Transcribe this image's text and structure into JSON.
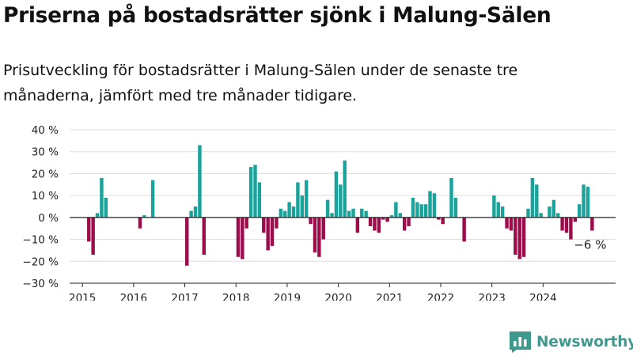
{
  "title": "Priserna på bostadsrätter sjönk i Malung-Sälen",
  "subtitle": "Prisutveckling för bostadsrätter i Malung-Sälen under de senaste tre månaderna, jämfört med tre månader tidigare.",
  "brand": "Newsworthy",
  "colors": {
    "positive": "#1aa39b",
    "negative": "#9b0d4b",
    "grid": "#dddddd",
    "baseline": "#222222",
    "brand": "#3f9a8d"
  },
  "chart_data": {
    "type": "bar",
    "y_unit": "%",
    "ylim": [
      -30,
      40
    ],
    "yticks": [
      {
        "value": -30,
        "label": "−30 %"
      },
      {
        "value": -20,
        "label": "−20 %"
      },
      {
        "value": -10,
        "label": "−10 %"
      },
      {
        "value": 0,
        "label": "0 %"
      },
      {
        "value": 10,
        "label": "10 %"
      },
      {
        "value": 20,
        "label": "20 %"
      },
      {
        "value": 30,
        "label": "30 %"
      },
      {
        "value": 40,
        "label": "40 %"
      }
    ],
    "xticks": [
      {
        "date": "2015-01",
        "label": "2015"
      },
      {
        "date": "2016-01",
        "label": "2016"
      },
      {
        "date": "2017-01",
        "label": "2017"
      },
      {
        "date": "2018-01",
        "label": "2018"
      },
      {
        "date": "2019-01",
        "label": "2019"
      },
      {
        "date": "2020-01",
        "label": "2020"
      },
      {
        "date": "2021-01",
        "label": "2021"
      },
      {
        "date": "2022-01",
        "label": "2022"
      },
      {
        "date": "2023-01",
        "label": "2023"
      },
      {
        "date": "2024-01",
        "label": "2024"
      }
    ],
    "xlim": [
      "2014-10",
      "2025-06"
    ],
    "grid": true,
    "series": [
      {
        "points": [
          {
            "date": "2015-02",
            "value": -11
          },
          {
            "date": "2015-03",
            "value": -17
          },
          {
            "date": "2015-04",
            "value": 2
          },
          {
            "date": "2015-05",
            "value": 18
          },
          {
            "date": "2015-06",
            "value": 9
          },
          {
            "date": "2016-02",
            "value": -5
          },
          {
            "date": "2016-03",
            "value": 1
          },
          {
            "date": "2016-05",
            "value": 17
          },
          {
            "date": "2017-01",
            "value": -22
          },
          {
            "date": "2017-02",
            "value": 3
          },
          {
            "date": "2017-03",
            "value": 5
          },
          {
            "date": "2017-04",
            "value": 33
          },
          {
            "date": "2017-05",
            "value": -17
          },
          {
            "date": "2018-01",
            "value": -18
          },
          {
            "date": "2018-02",
            "value": -19
          },
          {
            "date": "2018-03",
            "value": -5
          },
          {
            "date": "2018-04",
            "value": 23
          },
          {
            "date": "2018-05",
            "value": 24
          },
          {
            "date": "2018-06",
            "value": 16
          },
          {
            "date": "2018-07",
            "value": -7
          },
          {
            "date": "2018-08",
            "value": -15
          },
          {
            "date": "2018-09",
            "value": -13
          },
          {
            "date": "2018-10",
            "value": -5
          },
          {
            "date": "2018-11",
            "value": 4
          },
          {
            "date": "2018-12",
            "value": 3
          },
          {
            "date": "2019-01",
            "value": 7
          },
          {
            "date": "2019-02",
            "value": 5
          },
          {
            "date": "2019-03",
            "value": 16
          },
          {
            "date": "2019-04",
            "value": 10
          },
          {
            "date": "2019-05",
            "value": 17
          },
          {
            "date": "2019-06",
            "value": -3
          },
          {
            "date": "2019-07",
            "value": -16
          },
          {
            "date": "2019-08",
            "value": -18
          },
          {
            "date": "2019-09",
            "value": -10
          },
          {
            "date": "2019-10",
            "value": 8
          },
          {
            "date": "2019-11",
            "value": 2
          },
          {
            "date": "2019-12",
            "value": 21
          },
          {
            "date": "2020-01",
            "value": 15
          },
          {
            "date": "2020-02",
            "value": 26
          },
          {
            "date": "2020-03",
            "value": 3
          },
          {
            "date": "2020-04",
            "value": 4
          },
          {
            "date": "2020-05",
            "value": -7
          },
          {
            "date": "2020-06",
            "value": 4
          },
          {
            "date": "2020-07",
            "value": 3
          },
          {
            "date": "2020-08",
            "value": -4
          },
          {
            "date": "2020-09",
            "value": -6
          },
          {
            "date": "2020-10",
            "value": -7
          },
          {
            "date": "2020-11",
            "value": -1
          },
          {
            "date": "2020-12",
            "value": -2
          },
          {
            "date": "2021-01",
            "value": 1
          },
          {
            "date": "2021-02",
            "value": 7
          },
          {
            "date": "2021-03",
            "value": 2
          },
          {
            "date": "2021-04",
            "value": -6
          },
          {
            "date": "2021-05",
            "value": -4
          },
          {
            "date": "2021-06",
            "value": 9
          },
          {
            "date": "2021-07",
            "value": 7
          },
          {
            "date": "2021-08",
            "value": 6
          },
          {
            "date": "2021-09",
            "value": 6
          },
          {
            "date": "2021-10",
            "value": 12
          },
          {
            "date": "2021-11",
            "value": 11
          },
          {
            "date": "2021-12",
            "value": -1
          },
          {
            "date": "2022-01",
            "value": -3
          },
          {
            "date": "2022-03",
            "value": 18
          },
          {
            "date": "2022-04",
            "value": 9
          },
          {
            "date": "2022-06",
            "value": -11
          },
          {
            "date": "2023-01",
            "value": 10
          },
          {
            "date": "2023-02",
            "value": 7
          },
          {
            "date": "2023-03",
            "value": 5
          },
          {
            "date": "2023-04",
            "value": -5
          },
          {
            "date": "2023-05",
            "value": -6
          },
          {
            "date": "2023-06",
            "value": -17
          },
          {
            "date": "2023-07",
            "value": -19
          },
          {
            "date": "2023-08",
            "value": -18
          },
          {
            "date": "2023-09",
            "value": 4
          },
          {
            "date": "2023-10",
            "value": 18
          },
          {
            "date": "2023-11",
            "value": 15
          },
          {
            "date": "2023-12",
            "value": 2
          },
          {
            "date": "2024-02",
            "value": 5
          },
          {
            "date": "2024-03",
            "value": 8
          },
          {
            "date": "2024-04",
            "value": 2
          },
          {
            "date": "2024-05",
            "value": -6
          },
          {
            "date": "2024-06",
            "value": -7
          },
          {
            "date": "2024-07",
            "value": -10
          },
          {
            "date": "2024-08",
            "value": -2
          },
          {
            "date": "2024-09",
            "value": 6
          },
          {
            "date": "2024-10",
            "value": 15
          },
          {
            "date": "2024-11",
            "value": 14
          },
          {
            "date": "2024-12",
            "value": -6
          }
        ]
      }
    ],
    "annotation": {
      "date": "2024-12",
      "value": -6,
      "label": "−6 %"
    }
  }
}
